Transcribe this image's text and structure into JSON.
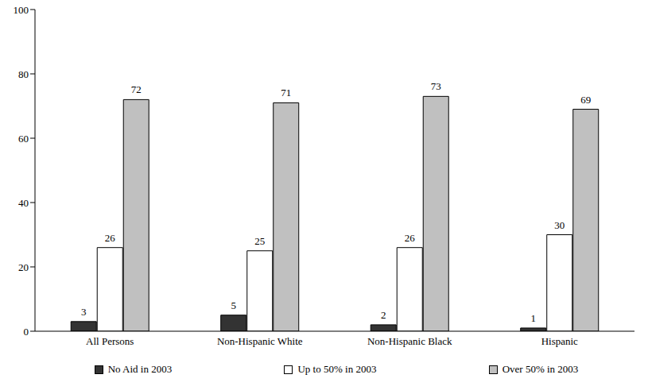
{
  "chart_data": {
    "type": "bar",
    "categories": [
      "All Persons",
      "Non-Hispanic White",
      "Non-Hispanic Black",
      "Hispanic"
    ],
    "series": [
      {
        "name": "No Aid in 2003",
        "color": "#333333",
        "values": [
          3,
          5,
          2,
          1
        ]
      },
      {
        "name": "Up to 50% in 2003",
        "color": "#ffffff",
        "values": [
          26,
          25,
          26,
          30
        ]
      },
      {
        "name": "Over 50% in 2003",
        "color": "#c0c0c0",
        "values": [
          72,
          71,
          73,
          69
        ]
      }
    ],
    "ylim": [
      0,
      100
    ],
    "yticks": [
      0,
      20,
      40,
      60,
      80,
      100
    ],
    "grid": false,
    "legend": "bottom",
    "data_labels": true
  }
}
